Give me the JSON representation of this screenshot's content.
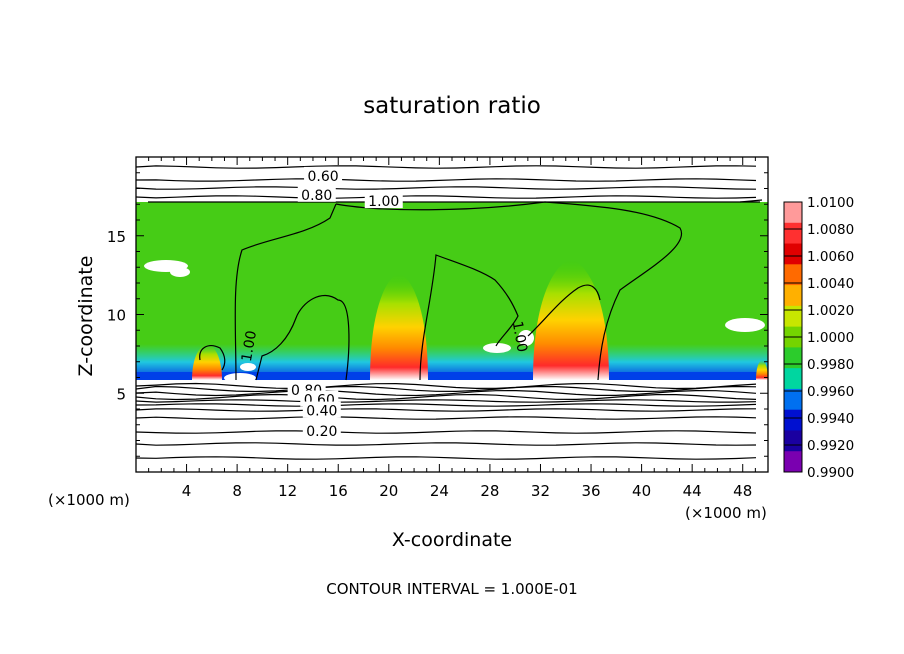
{
  "chart_data": {
    "type": "heatmap",
    "title": "saturation ratio",
    "xlabel": "X-coordinate",
    "ylabel": "Z-coordinate",
    "x_unit": "(×1000 m)",
    "y_unit": "(×1000 m)",
    "xlim": [
      0,
      50
    ],
    "ylim": [
      0,
      20
    ],
    "x_ticks": [
      {
        "value": 4,
        "label": "4"
      },
      {
        "value": 8,
        "label": "8"
      },
      {
        "value": 12,
        "label": "12"
      },
      {
        "value": 16,
        "label": "16"
      },
      {
        "value": 20,
        "label": "20"
      },
      {
        "value": 24,
        "label": "24"
      },
      {
        "value": 28,
        "label": "28"
      },
      {
        "value": 32,
        "label": "32"
      },
      {
        "value": 36,
        "label": "36"
      },
      {
        "value": 40,
        "label": "40"
      },
      {
        "value": 44,
        "label": "44"
      },
      {
        "value": 48,
        "label": "48"
      }
    ],
    "y_ticks": [
      {
        "value": 5,
        "label": "5"
      },
      {
        "value": 10,
        "label": "10"
      },
      {
        "value": 15,
        "label": "15"
      }
    ],
    "colorbar": {
      "labels": [
        "1.0100",
        "1.0080",
        "1.0060",
        "1.0040",
        "1.0020",
        "1.0000",
        "0.9980",
        "0.9960",
        "0.9940",
        "0.9920",
        "0.9900"
      ],
      "colors": [
        "#ff9a9a",
        "#ff3030",
        "#e00000",
        "#ff6a00",
        "#ffb000",
        "#c8e600",
        "#74d400",
        "#2ccc2c",
        "#00d6a0",
        "#0070f0",
        "#0010d0",
        "#1a00a0",
        "#7a00b0"
      ]
    },
    "contour_labels": [
      {
        "label": "0.60",
        "x": 14.8,
        "z": 18.8
      },
      {
        "label": "0.80",
        "x": 14.3,
        "z": 17.6
      },
      {
        "label": "1.00",
        "x": 19.6,
        "z": 17.2
      },
      {
        "label": "1.00",
        "x": 8.9,
        "z": 8.0
      },
      {
        "label": "1.00",
        "x": 30.4,
        "z": 8.6
      },
      {
        "label": "0.80",
        "x": 13.5,
        "z": 5.2
      },
      {
        "label": "0.60",
        "x": 14.5,
        "z": 4.6
      },
      {
        "label": "0.40",
        "x": 14.7,
        "z": 3.9
      },
      {
        "label": "0.20",
        "x": 14.7,
        "z": 2.6
      }
    ],
    "footer": "CONTOUR INTERVAL = 1.000E-01"
  }
}
